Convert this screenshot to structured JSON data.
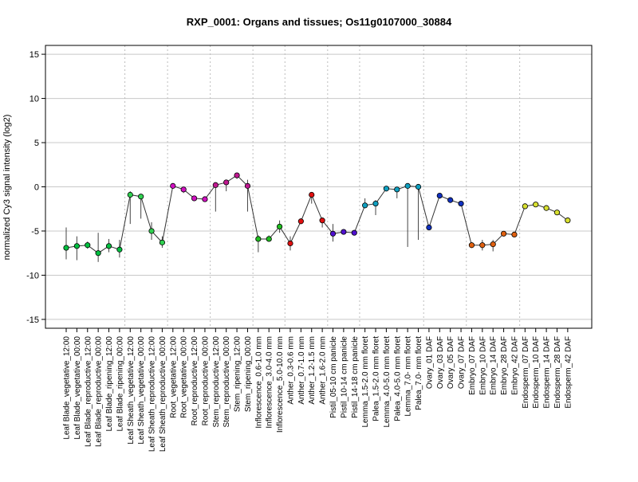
{
  "chart_data": {
    "type": "line",
    "title": "RXP_0001: Organs and tissues; Os11g0107000_30884",
    "xlabel": "",
    "ylabel": "normalized Cy3 signal intensity (log2)",
    "ylim": [
      -16,
      16
    ],
    "yticks": [
      -15,
      -10,
      -5,
      0,
      5,
      10,
      15
    ],
    "ytick_labels": [
      "-15",
      "-10",
      "-5",
      "0",
      "5",
      "10",
      "15"
    ],
    "grid": true,
    "categories": [
      "Leaf Blade_vegetative_12:00",
      "Leaf Blade_vegetative_00:00",
      "Leaf Blade_reproductive_12:00",
      "Leaf Blade_reproductive_00:00",
      "Leaf Blade_ripening_12:00",
      "Leaf Blade_ripening_00:00",
      "Leaf Sheath_vegetative_12:00",
      "Leaf Sheath_vegetative_00:00",
      "Leaf Sheath_reproductive_12:00",
      "Leaf Sheath_reproductive_00:00",
      "Root_vegetative_12:00",
      "Root_vegetative_00:00",
      "Root_reproductive_12:00",
      "Root_reproductive_00:00",
      "Stem_reproductive_12:00",
      "Stem_reproductive_00:00",
      "Stem_ripening_12:00",
      "Stem_ripening_00:00",
      "Inflorescence_0.6-1.0 mm",
      "Inflorescence_3.0-4.0 mm",
      "Inflorescence_5.0-10.0 mm",
      "Anther_0.3-0.6 mm",
      "Anther_0.7-1.0 mm",
      "Anther_1.2-1.5 mm",
      "Anther_1.6-2.0 mm",
      "Pistil_05-10 cm panicle",
      "Pistil_10-14 cm panicle",
      "Pistil_14-18 cm panicle",
      "Lemma_1.5-2.0 mm floret",
      "Palea_1.5-2.0 mm floret",
      "Lemma_4.0-5.0 mm floret",
      "Palea_4.0-5.0 mm floret",
      "Lemma_7.0- mm floret",
      "Palea_7.0- mm floret",
      "Ovary_01 DAF",
      "Ovary_03 DAF",
      "Ovary_05 DAF",
      "Ovary_07 DAF",
      "Embryo_07 DAF",
      "Embryo_10 DAF",
      "Embryo_14 DAF",
      "Embryo_28 DAF",
      "Embryo_42 DAF",
      "Endosperm_07 DAF",
      "Endosperm_10 DAF",
      "Endosperm_14 DAF",
      "Endosperm_28 DAF",
      "Endosperm_42 DAF"
    ],
    "series": [
      {
        "values": [
          -6.9,
          -6.7,
          -6.6,
          -7.5,
          -6.7,
          -7.1,
          -0.9,
          -1.1,
          -5.0,
          -6.3,
          0.1,
          -0.3,
          -1.3,
          -1.4,
          0.2,
          0.5,
          1.3,
          0.1,
          -5.9,
          -5.9,
          -4.5,
          -6.4,
          -3.9,
          -0.9,
          -3.8,
          -5.3,
          -5.1,
          -5.2,
          -2.1,
          -1.9,
          -0.2,
          -0.3,
          0.1,
          0.0,
          -4.6,
          -1.0,
          -1.5,
          -1.9,
          -6.6,
          -6.6,
          -6.5,
          -5.3,
          -5.4,
          -2.2,
          -2.0,
          -2.4,
          -2.9,
          -3.8
        ],
        "err_low": [
          -8.2,
          -8.3,
          -7.0,
          -8.5,
          -7.4,
          -8.0,
          -4.2,
          -3.6,
          -6.0,
          -6.9,
          0.0,
          -0.7,
          -1.5,
          -1.6,
          -2.8,
          -0.5,
          0.9,
          -2.8,
          -7.4,
          -6.2,
          -5.2,
          -7.2,
          -4.2,
          -1.9,
          -4.6,
          -6.2,
          -5.4,
          -5.5,
          -2.4,
          -3.2,
          -0.4,
          -1.3,
          -6.8,
          -6.0,
          -4.9,
          -1.2,
          -1.7,
          -2.1,
          -6.9,
          -7.2,
          -7.3,
          -5.5,
          -5.7,
          -2.5,
          -2.3,
          -2.6,
          -3.1,
          -4.0
        ],
        "err_high": [
          -4.6,
          -5.6,
          -6.2,
          -5.2,
          -5.9,
          -6.0,
          -0.5,
          -0.8,
          -4.0,
          -5.6,
          0.3,
          0.0,
          -1.0,
          -1.2,
          0.5,
          0.8,
          1.6,
          0.8,
          -5.5,
          -5.5,
          -3.8,
          -5.6,
          -3.6,
          -0.7,
          -3.5,
          -4.2,
          -4.8,
          -4.9,
          -1.3,
          -1.5,
          0.0,
          0.0,
          0.4,
          0.3,
          -4.3,
          -0.8,
          -1.3,
          -1.6,
          -6.3,
          -6.0,
          -6.0,
          -5.1,
          -5.1,
          -2.0,
          -1.7,
          -2.2,
          -2.7,
          -3.6
        ],
        "colors": [
          "#00c040",
          "#00c040",
          "#00c040",
          "#00c040",
          "#00c040",
          "#00c040",
          "#30d050",
          "#30d050",
          "#30d050",
          "#30d050",
          "#d010c0",
          "#d010c0",
          "#d010c0",
          "#d010c0",
          "#c01890",
          "#c01890",
          "#c01890",
          "#c01890",
          "#20c020",
          "#20c020",
          "#20c020",
          "#e01010",
          "#e01010",
          "#e01010",
          "#e01010",
          "#5010d0",
          "#5010d0",
          "#5010d0",
          "#10a0c0",
          "#10a0c0",
          "#10a0c0",
          "#10a0c0",
          "#10a0c0",
          "#10a0c0",
          "#1030c0",
          "#1030c0",
          "#1030c0",
          "#1030c0",
          "#e06010",
          "#e06010",
          "#e06010",
          "#e06010",
          "#e06010",
          "#d8e030",
          "#d8e030",
          "#d8e030",
          "#d8e030",
          "#d8e030"
        ]
      }
    ],
    "group_boundaries_after": [
      6,
      10,
      14,
      18,
      21,
      25,
      28,
      34,
      38,
      43
    ]
  }
}
